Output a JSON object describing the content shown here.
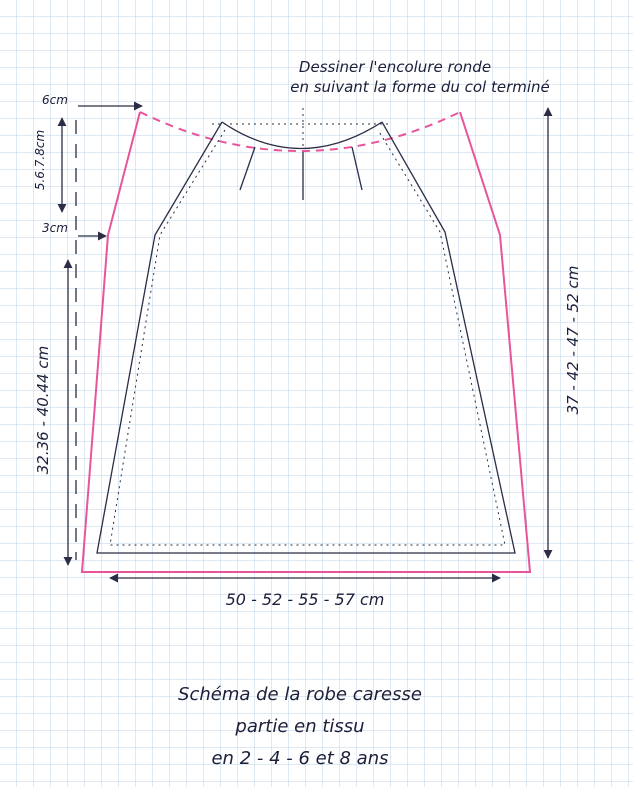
{
  "annotation": {
    "line1": "Dessiner l'encolure ronde",
    "line2": "en suivant la forme du col terminé"
  },
  "dimensions": {
    "shoulder_offset": "6cm",
    "armhole_depth": "5.6.7.8cm",
    "side_offset": "3cm",
    "side_length": "32.36 - 40.44 cm",
    "total_length": "37 - 42 - 47 - 52 cm",
    "hem_width": "50 - 52 - 55 - 57 cm"
  },
  "caption": {
    "line1": "Schéma de la robe caresse",
    "line2": "partie en tissu",
    "line3": "en 2 - 4 - 6 et 8 ans"
  }
}
